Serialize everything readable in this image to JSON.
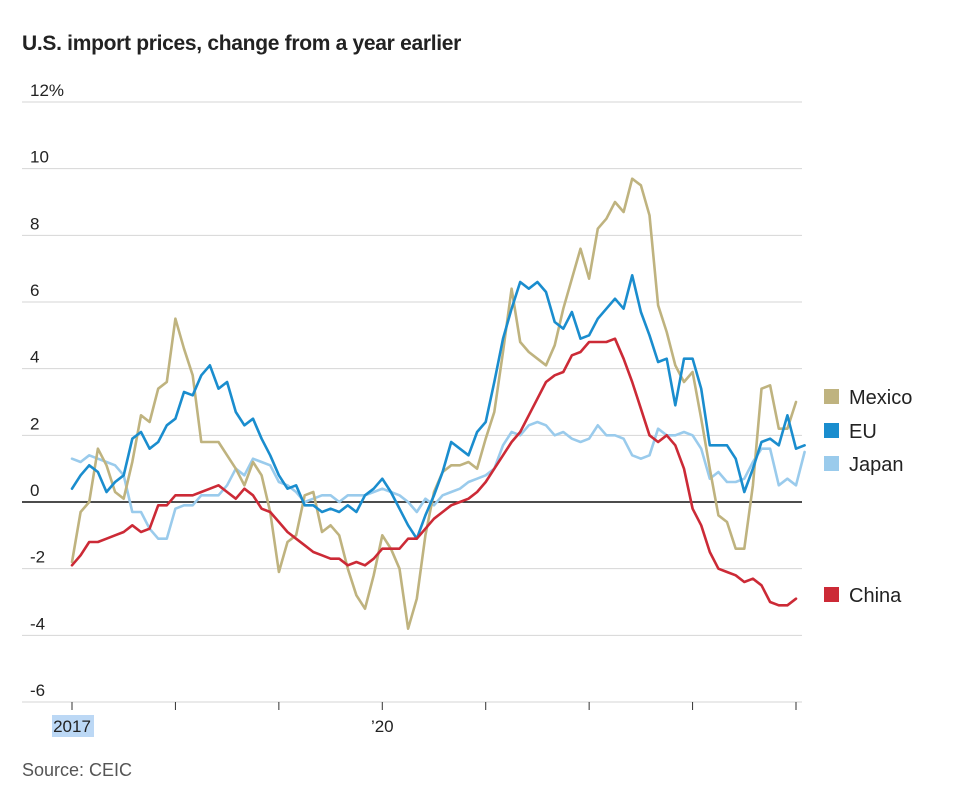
{
  "title": "U.S. import prices, change from a year earlier",
  "source": "Source: CEIC",
  "chart_data": {
    "type": "line",
    "title": "U.S. import prices, change from a year earlier",
    "xlabel": "",
    "ylabel": "",
    "y_tick_labels": [
      "12%",
      "10",
      "8",
      "6",
      "4",
      "2",
      "0",
      "-2",
      "-4",
      "-6"
    ],
    "y_ticks": [
      12,
      10,
      8,
      6,
      4,
      2,
      0,
      -2,
      -4,
      -6
    ],
    "ylim": [
      -6,
      12
    ],
    "x_tick_labels": [
      {
        "label": "2017",
        "t": 0
      },
      {
        "label": "’20",
        "t": 36
      }
    ],
    "x_major_ticks": [
      0,
      12,
      24,
      36,
      48,
      60,
      72,
      84
    ],
    "xlim": [
      0,
      84
    ],
    "x_unit": "months since Jan 2017",
    "grid": true,
    "legend_position": "right",
    "series": [
      {
        "name": "Mexico",
        "color": "#bfb37f",
        "values": [
          -1.8,
          -0.3,
          0,
          1.6,
          1.1,
          0.3,
          0.1,
          1.2,
          2.6,
          2.4,
          3.4,
          3.6,
          5.5,
          4.6,
          3.8,
          1.8,
          1.8,
          1.8,
          1.4,
          1.0,
          0.5,
          1.2,
          0.8,
          -0.3,
          -2.1,
          -1.2,
          -1.0,
          0.2,
          0.3,
          -0.9,
          -0.7,
          -1.0,
          -2.0,
          -2.8,
          -3.2,
          -2.2,
          -1.0,
          -1.4,
          -2.0,
          -3.8,
          -2.9,
          -1.0,
          0.3,
          0.9,
          1.1,
          1.1,
          1.2,
          1.0,
          1.9,
          2.7,
          4.5,
          6.4,
          4.8,
          4.5,
          4.3,
          4.1,
          4.7,
          5.8,
          6.7,
          7.6,
          6.7,
          8.2,
          8.5,
          9.0,
          8.7,
          9.7,
          9.5,
          8.6,
          5.9,
          5.1,
          4.1,
          3.6,
          3.9,
          2.5,
          1.0,
          -0.4,
          -0.6,
          -1.4,
          -1.4,
          0.5,
          3.4,
          3.5,
          2.2,
          2.2,
          3.0
        ]
      },
      {
        "name": "EU",
        "color": "#1a8dce",
        "values": [
          0.4,
          0.8,
          1.1,
          0.9,
          0.3,
          0.6,
          0.8,
          1.9,
          2.1,
          1.6,
          1.8,
          2.3,
          2.5,
          3.3,
          3.2,
          3.8,
          4.1,
          3.4,
          3.6,
          2.7,
          2.3,
          2.5,
          1.9,
          1.4,
          0.8,
          0.4,
          0.5,
          -0.1,
          -0.1,
          -0.3,
          -0.2,
          -0.3,
          -0.1,
          -0.3,
          0.2,
          0.4,
          0.7,
          0.3,
          -0.2,
          -0.7,
          -1.1,
          -0.4,
          0.2,
          0.9,
          1.8,
          1.6,
          1.4,
          2.1,
          2.4,
          3.6,
          4.9,
          5.8,
          6.6,
          6.4,
          6.6,
          6.3,
          5.4,
          5.2,
          5.7,
          4.9,
          5.0,
          5.5,
          5.8,
          6.1,
          5.8,
          6.8,
          5.7,
          5.0,
          4.2,
          4.3,
          2.9,
          4.3,
          4.3,
          3.4,
          1.7,
          1.7,
          1.7,
          1.3,
          0.3,
          1.0,
          1.8,
          1.9,
          1.7,
          2.6,
          1.6,
          1.7
        ]
      },
      {
        "name": "Japan",
        "color": "#9acbec",
        "values": [
          1.3,
          1.2,
          1.4,
          1.3,
          1.2,
          1.1,
          0.8,
          -0.3,
          -0.3,
          -0.8,
          -1.1,
          -1.1,
          -0.2,
          -0.1,
          -0.1,
          0.2,
          0.2,
          0.2,
          0.5,
          1.0,
          0.8,
          1.3,
          1.2,
          1.1,
          0.6,
          0.5,
          0.3,
          0.0,
          0.1,
          0.2,
          0.2,
          0.0,
          0.2,
          0.2,
          0.2,
          0.3,
          0.4,
          0.3,
          0.2,
          0.0,
          -0.3,
          0.1,
          -0.1,
          0.2,
          0.3,
          0.4,
          0.6,
          0.7,
          0.8,
          1.0,
          1.7,
          2.1,
          2.0,
          2.3,
          2.4,
          2.3,
          2.0,
          2.1,
          1.9,
          1.8,
          1.9,
          2.3,
          2.0,
          2.0,
          1.9,
          1.4,
          1.3,
          1.4,
          2.2,
          2.0,
          2.0,
          2.1,
          2.0,
          1.6,
          0.7,
          0.9,
          0.6,
          0.6,
          0.7,
          1.2,
          1.6,
          1.6,
          0.5,
          0.7,
          0.5,
          1.5
        ]
      },
      {
        "name": "China",
        "color": "#cc2a36",
        "values": [
          -1.9,
          -1.6,
          -1.2,
          -1.2,
          -1.1,
          -1.0,
          -0.9,
          -0.7,
          -0.9,
          -0.8,
          -0.1,
          -0.1,
          0.2,
          0.2,
          0.2,
          0.3,
          0.4,
          0.5,
          0.3,
          0.1,
          0.4,
          0.2,
          -0.2,
          -0.3,
          -0.6,
          -0.9,
          -1.1,
          -1.3,
          -1.5,
          -1.6,
          -1.7,
          -1.7,
          -1.9,
          -1.8,
          -1.9,
          -1.7,
          -1.4,
          -1.4,
          -1.4,
          -1.1,
          -1.1,
          -0.8,
          -0.5,
          -0.3,
          -0.1,
          0.0,
          0.1,
          0.3,
          0.6,
          1.0,
          1.4,
          1.8,
          2.1,
          2.6,
          3.1,
          3.6,
          3.8,
          3.9,
          4.4,
          4.5,
          4.8,
          4.8,
          4.8,
          4.9,
          4.3,
          3.6,
          2.8,
          2.0,
          1.8,
          2.0,
          1.7,
          1.0,
          -0.2,
          -0.7,
          -1.5,
          -2.0,
          -2.1,
          -2.2,
          -2.4,
          -2.3,
          -2.5,
          -3.0,
          -3.1,
          -3.1,
          -2.9
        ]
      }
    ]
  }
}
